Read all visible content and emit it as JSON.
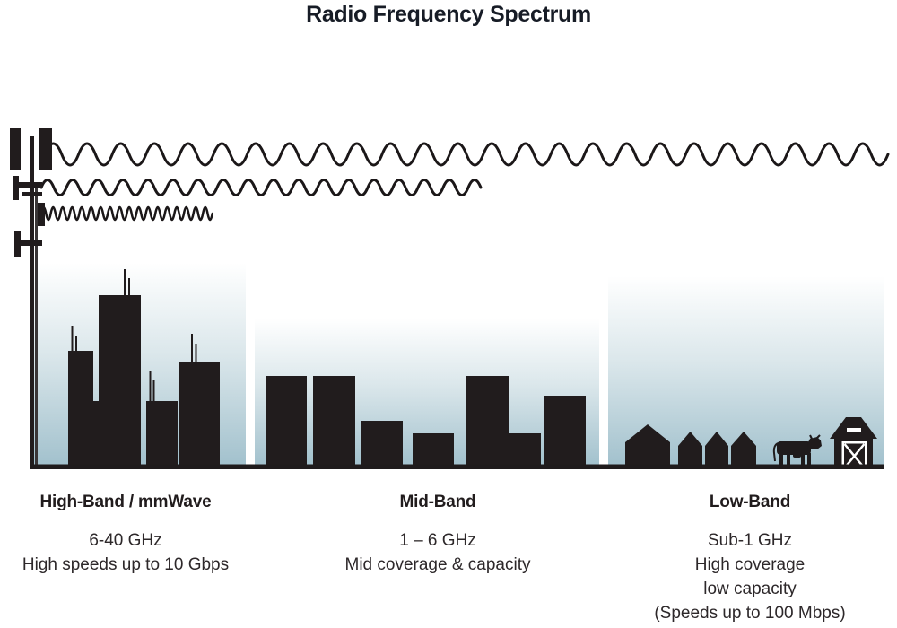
{
  "title": "Radio Frequency Spectrum",
  "bands": [
    {
      "id": "high-band",
      "heading": "High-Band / mmWave",
      "lines": [
        "6-40 GHz",
        "High speeds up to 10 Gbps"
      ]
    },
    {
      "id": "mid-band",
      "heading": "Mid-Band",
      "lines": [
        "1 – 6 GHz",
        "Mid coverage & capacity"
      ]
    },
    {
      "id": "low-band",
      "heading": "Low-Band",
      "lines": [
        "Sub-1 GHz",
        "High coverage",
        "low capacity",
        "(Speeds up to 100 Mbps)"
      ]
    }
  ],
  "colors": {
    "ink": "#211c1d",
    "title_text": "#171c26",
    "body_text": "#2d282a",
    "sky_top": "#ffffff",
    "sky_mid": "#dbe7eb",
    "sky_bottom": "#a2c1cd"
  },
  "scene_icons": [
    "cell-tower-icon",
    "long-wave-icon",
    "medium-wave-icon",
    "short-wave-icon",
    "city-skyline-icon",
    "midrise-buildings-icon",
    "houses-icon",
    "cow-icon",
    "barn-icon",
    "ground-line"
  ]
}
